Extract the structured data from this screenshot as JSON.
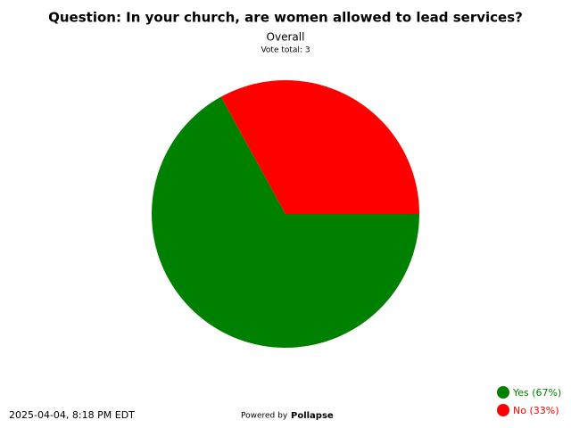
{
  "chart_data": {
    "type": "pie",
    "title": "Question: In your church, are women allowed to lead services?",
    "subtitle": "Overall",
    "vote_total": "Vote total: 3",
    "categories": [
      "Yes (67%)",
      "No (33%)"
    ],
    "values": [
      67,
      33
    ],
    "colors": [
      "#008000",
      "#ff0000"
    ],
    "legend_colors": [
      "#008000",
      "#ff0000"
    ],
    "timestamp": "2025-04-04, 8:18 PM EDT",
    "powered_by": "Powered by",
    "brand": "Pollapse"
  }
}
